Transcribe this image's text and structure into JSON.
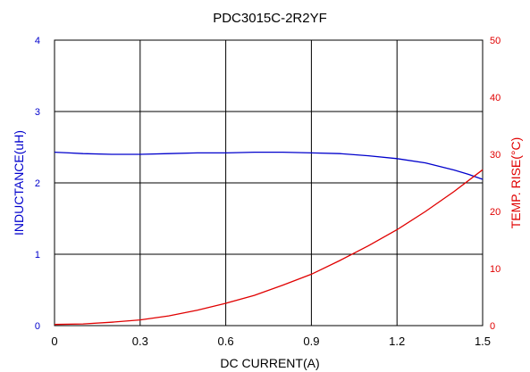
{
  "chart_data": {
    "type": "line",
    "title": "PDC3015C-2R2YF",
    "xlabel": "DC CURRENT(A)",
    "ylabel_left": "INDUCTANCE(uH)",
    "ylabel_right": "TEMP. RISE(°C)",
    "xlim": [
      0,
      1.5
    ],
    "ylim_left": [
      0,
      4
    ],
    "ylim_right": [
      0,
      50
    ],
    "xticks": [
      "0",
      "0.3",
      "0.6",
      "0.9",
      "1.2",
      "1.5"
    ],
    "yticks_left": [
      "0",
      "1",
      "2",
      "3",
      "4"
    ],
    "yticks_right": [
      "0",
      "10",
      "20",
      "30",
      "40",
      "50"
    ],
    "grid": true,
    "colors": {
      "inductance": "#0000cc",
      "temp_rise": "#e00000",
      "grid": "#000000"
    },
    "series": [
      {
        "axis": "left",
        "x": [
          0,
          0.05,
          0.1,
          0.2,
          0.3,
          0.4,
          0.5,
          0.6,
          0.7,
          0.8,
          0.9,
          1.0,
          1.1,
          1.2,
          1.3,
          1.4,
          1.45,
          1.5
        ],
        "values": [
          2.43,
          2.42,
          2.41,
          2.4,
          2.4,
          2.41,
          2.42,
          2.42,
          2.43,
          2.43,
          2.42,
          2.41,
          2.38,
          2.34,
          2.28,
          2.18,
          2.12,
          2.05
        ]
      },
      {
        "axis": "right",
        "x": [
          0,
          0.1,
          0.2,
          0.3,
          0.4,
          0.5,
          0.6,
          0.7,
          0.8,
          0.9,
          1.0,
          1.1,
          1.2,
          1.3,
          1.4,
          1.5
        ],
        "values": [
          0.2,
          0.3,
          0.6,
          1.0,
          1.7,
          2.7,
          3.9,
          5.3,
          7.1,
          9.0,
          11.4,
          14.0,
          16.8,
          20.0,
          23.5,
          27.3
        ]
      }
    ]
  }
}
